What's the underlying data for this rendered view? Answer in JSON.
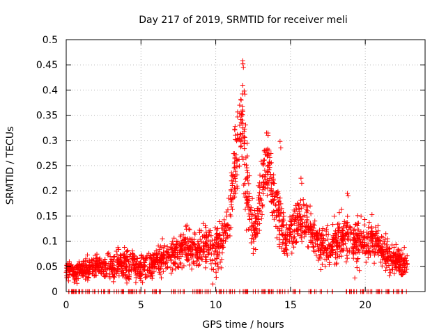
{
  "chart_data": {
    "type": "scatter",
    "title": "Day 217 of 2019, SRMTID for receiver meli",
    "xlabel": "GPS time / hours",
    "ylabel": "SRMTID / TECUs",
    "xlim": [
      0,
      24
    ],
    "ylim": [
      0,
      0.5
    ],
    "xticks": [
      0,
      5,
      10,
      15,
      20
    ],
    "yticks": [
      0,
      0.05,
      0.1,
      0.15,
      0.2,
      0.25,
      0.3,
      0.35,
      0.4,
      0.45,
      0.5
    ],
    "xtick_labels": [
      "0",
      "5",
      "10",
      "15",
      "20"
    ],
    "ytick_labels": [
      "0",
      "0.05",
      "0.1",
      "0.15",
      "0.2",
      "0.25",
      "0.3",
      "0.35",
      "0.4",
      "0.45",
      "0.5"
    ],
    "grid": true,
    "marker": "+",
    "marker_color": "#ff0000",
    "series": [
      {
        "name": "SRMTID",
        "profile_x": [
          0,
          0.5,
          1,
          1.5,
          2,
          2.5,
          3,
          3.5,
          4,
          4.5,
          5,
          5.5,
          6,
          6.5,
          7,
          7.5,
          8,
          8.5,
          9,
          9.5,
          10,
          10.5,
          11,
          11.3,
          11.6,
          11.8,
          12,
          12.3,
          12.6,
          13,
          13.3,
          13.6,
          14,
          14.3,
          14.6,
          15,
          15.5,
          16,
          16.5,
          17,
          17.5,
          18,
          18.5,
          19,
          19.5,
          20,
          20.5,
          21,
          21.5,
          22,
          22.5,
          22.8
        ],
        "profile_y": [
          0.04,
          0.04,
          0.045,
          0.045,
          0.05,
          0.05,
          0.05,
          0.055,
          0.06,
          0.055,
          0.05,
          0.05,
          0.06,
          0.065,
          0.07,
          0.085,
          0.09,
          0.08,
          0.085,
          0.09,
          0.085,
          0.1,
          0.16,
          0.26,
          0.31,
          0.33,
          0.23,
          0.14,
          0.12,
          0.18,
          0.24,
          0.24,
          0.17,
          0.15,
          0.1,
          0.12,
          0.14,
          0.13,
          0.11,
          0.09,
          0.09,
          0.1,
          0.11,
          0.1,
          0.095,
          0.1,
          0.1,
          0.085,
          0.07,
          0.06,
          0.055,
          0.055
        ],
        "spread": [
          0.02,
          0.02,
          0.02,
          0.02,
          0.02,
          0.02,
          0.022,
          0.025,
          0.03,
          0.025,
          0.025,
          0.025,
          0.025,
          0.03,
          0.03,
          0.035,
          0.035,
          0.035,
          0.04,
          0.04,
          0.04,
          0.045,
          0.06,
          0.08,
          0.09,
          0.09,
          0.08,
          0.05,
          0.045,
          0.06,
          0.06,
          0.06,
          0.05,
          0.045,
          0.04,
          0.04,
          0.045,
          0.045,
          0.04,
          0.035,
          0.035,
          0.04,
          0.045,
          0.045,
          0.04,
          0.04,
          0.04,
          0.035,
          0.03,
          0.025,
          0.025,
          0.025
        ],
        "points_count": 2200,
        "zero_points_count": 190,
        "peak_points": [
          {
            "x": 11.8,
            "y": 0.458
          },
          {
            "x": 11.82,
            "y": 0.452
          },
          {
            "x": 11.85,
            "y": 0.445
          },
          {
            "x": 11.9,
            "y": 0.398
          },
          {
            "x": 11.95,
            "y": 0.392
          },
          {
            "x": 11.7,
            "y": 0.38
          },
          {
            "x": 11.6,
            "y": 0.37
          },
          {
            "x": 13.4,
            "y": 0.315
          },
          {
            "x": 13.5,
            "y": 0.31
          },
          {
            "x": 14.3,
            "y": 0.298
          },
          {
            "x": 14.35,
            "y": 0.285
          },
          {
            "x": 15.7,
            "y": 0.225
          },
          {
            "x": 15.75,
            "y": 0.215
          },
          {
            "x": 18.8,
            "y": 0.195
          },
          {
            "x": 18.85,
            "y": 0.19
          },
          {
            "x": 9.8,
            "y": 0.015
          },
          {
            "x": 19.3,
            "y": 0.027
          }
        ]
      }
    ]
  }
}
